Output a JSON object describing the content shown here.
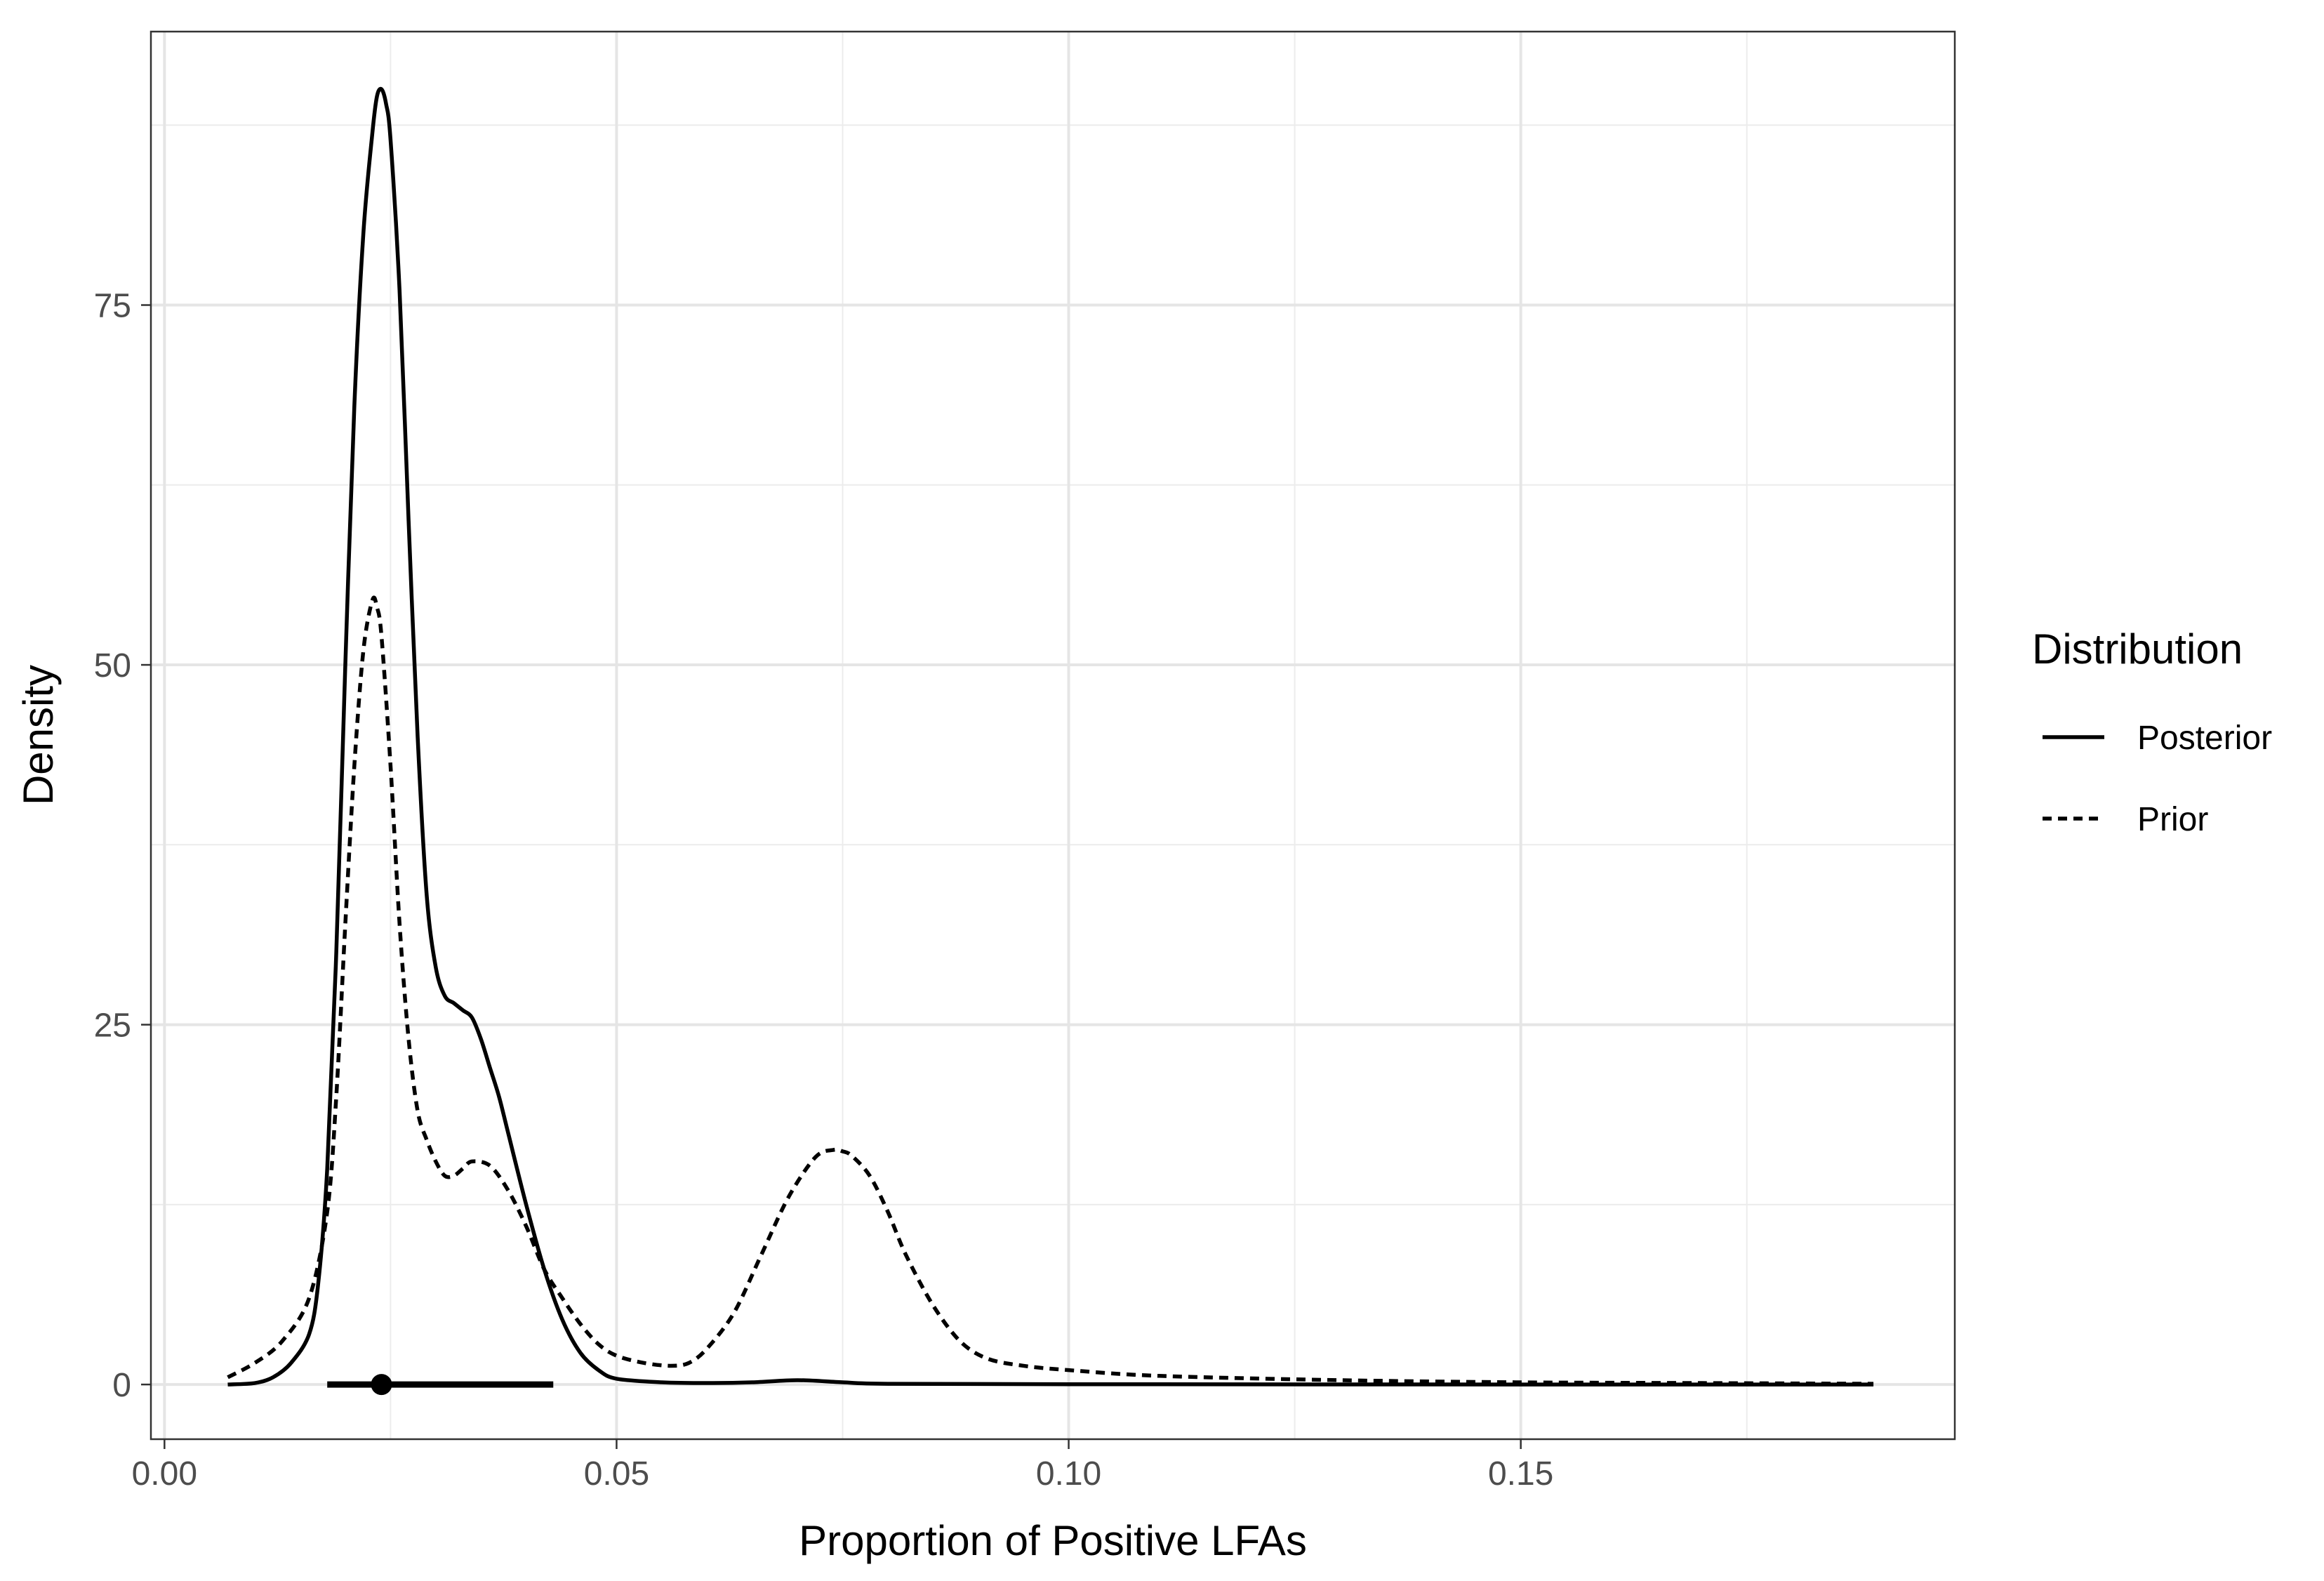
{
  "chart_data": {
    "type": "line",
    "xlabel": "Proportion of Positive LFAs",
    "ylabel": "Density",
    "xlim": [
      -0.0015,
      0.198
    ],
    "ylim": [
      -3.8,
      94
    ],
    "x_ticks": [
      0.0,
      0.05,
      0.1,
      0.15
    ],
    "x_tick_labels": [
      "0.00",
      "0.05",
      "0.10",
      "0.15"
    ],
    "y_ticks": [
      0,
      25,
      50,
      75
    ],
    "y_tick_labels": [
      "0",
      "25",
      "50",
      "75"
    ],
    "grid": true,
    "legend": {
      "title": "Distribution",
      "position": "right",
      "entries": [
        {
          "label": "Posterior",
          "linestyle": "solid"
        },
        {
          "label": "Prior",
          "linestyle": "dashed"
        }
      ]
    },
    "series": [
      {
        "name": "Posterior",
        "linestyle": "solid",
        "color": "#000000",
        "x": [
          0.007,
          0.01,
          0.012,
          0.014,
          0.016,
          0.017,
          0.018,
          0.019,
          0.02,
          0.021,
          0.022,
          0.023,
          0.0235,
          0.024,
          0.0245,
          0.025,
          0.026,
          0.027,
          0.028,
          0.029,
          0.03,
          0.031,
          0.032,
          0.033,
          0.034,
          0.035,
          0.036,
          0.037,
          0.038,
          0.04,
          0.042,
          0.044,
          0.046,
          0.048,
          0.05,
          0.055,
          0.06,
          0.065,
          0.07,
          0.075,
          0.08,
          0.1,
          0.15,
          0.189
        ],
        "y": [
          0,
          0.1,
          0.5,
          1.5,
          3.5,
          7,
          15,
          30,
          50,
          68,
          80,
          87,
          89.5,
          90,
          89,
          86.5,
          76,
          60,
          45,
          34,
          29,
          27,
          26.5,
          26,
          25.5,
          24,
          22,
          20,
          17.5,
          12.5,
          8,
          4.5,
          2.2,
          1.0,
          0.4,
          0.15,
          0.1,
          0.15,
          0.3,
          0.15,
          0.05,
          0.02,
          0.0,
          0.0
        ]
      },
      {
        "name": "Prior",
        "linestyle": "dashed",
        "color": "#000000",
        "x": [
          0.007,
          0.01,
          0.013,
          0.016,
          0.018,
          0.019,
          0.02,
          0.021,
          0.022,
          0.023,
          0.0235,
          0.024,
          0.025,
          0.026,
          0.027,
          0.028,
          0.029,
          0.03,
          0.031,
          0.032,
          0.033,
          0.034,
          0.036,
          0.038,
          0.04,
          0.042,
          0.044,
          0.046,
          0.048,
          0.05,
          0.053,
          0.056,
          0.058,
          0.06,
          0.063,
          0.066,
          0.069,
          0.072,
          0.074,
          0.075,
          0.076,
          0.078,
          0.08,
          0.082,
          0.085,
          0.088,
          0.091,
          0.095,
          0.1,
          0.11,
          0.13,
          0.15,
          0.17,
          0.189
        ],
        "y": [
          0.5,
          1.5,
          3,
          6,
          12,
          20,
          32,
          43,
          51,
          54.5,
          54,
          52,
          43,
          32,
          24,
          19,
          17,
          15.5,
          14.5,
          14.5,
          15,
          15.5,
          15.2,
          13.5,
          11,
          8,
          6,
          4.2,
          2.8,
          2,
          1.5,
          1.3,
          1.5,
          2.5,
          5,
          9,
          13,
          15.8,
          16.3,
          16.2,
          15.9,
          14.5,
          12,
          9,
          5.5,
          3,
          1.8,
          1.3,
          1.0,
          0.6,
          0.3,
          0.15,
          0.1,
          0.05
        ]
      }
    ],
    "interval": {
      "x_min": 0.018,
      "x_max": 0.043,
      "y": 0,
      "point_x": 0.024
    }
  }
}
